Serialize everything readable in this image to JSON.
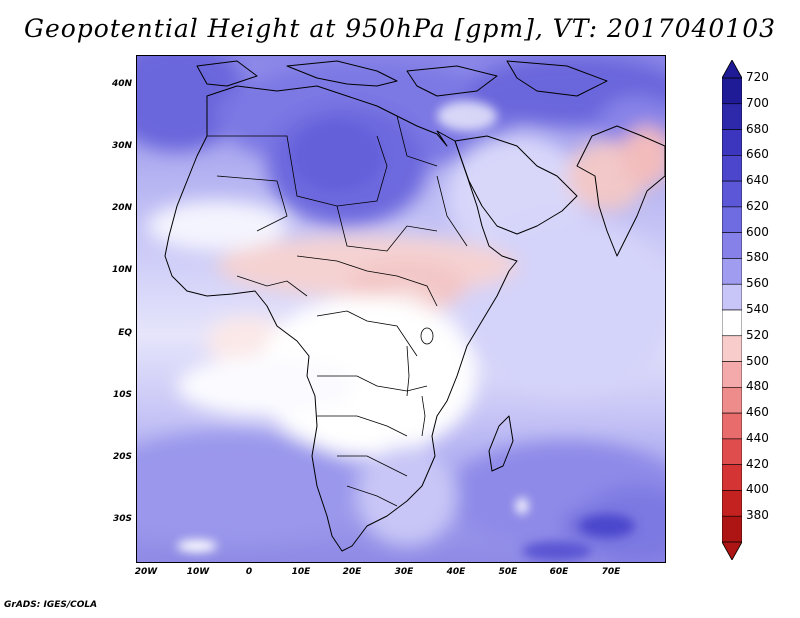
{
  "title": "Geopotential Height at 950hPa [gpm], VT: 2017040103",
  "credit": "GrADS: IGES/COLA",
  "map": {
    "lat_labels": [
      "40N",
      "30N",
      "20N",
      "10N",
      "EQ",
      "10S",
      "20S",
      "30S"
    ],
    "lon_labels": [
      "20W",
      "10W",
      "0",
      "10E",
      "20E",
      "30E",
      "40E",
      "50E",
      "60E",
      "70E"
    ]
  },
  "colorbar": {
    "labels": [
      "720",
      "700",
      "680",
      "660",
      "640",
      "620",
      "600",
      "580",
      "560",
      "540",
      "520",
      "500",
      "480",
      "460",
      "440",
      "420",
      "400",
      "380"
    ],
    "colors": [
      "#1f1a96",
      "#2e28aa",
      "#3c36be",
      "#4b46cc",
      "#5c57d6",
      "#6f6be0",
      "#8581e8",
      "#a09df0",
      "#c8c6f8",
      "#ffffff",
      "#f9cccc",
      "#f4aaaa",
      "#ee8b8b",
      "#e86c6c",
      "#e04d4d",
      "#d43434",
      "#c42121",
      "#ad1414"
    ]
  }
}
